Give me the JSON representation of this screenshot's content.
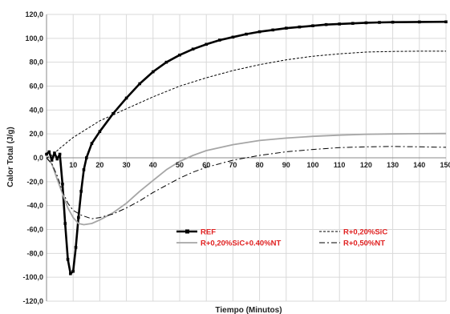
{
  "chart_data": {
    "type": "line",
    "title": "",
    "xlabel": "Tiempo (Minutos)",
    "ylabel": "Calor Total (J/g)",
    "xlim": [
      0,
      150
    ],
    "ylim": [
      -120,
      120
    ],
    "x_ticks": [
      "10",
      "20",
      "30",
      "40",
      "50",
      "60",
      "70",
      "80",
      "90",
      "100",
      "110",
      "120",
      "130",
      "140",
      "150"
    ],
    "y_ticks": [
      "120,0",
      "100,0",
      "80,0",
      "60,0",
      "40,0",
      "20,0",
      "0,0",
      "-20,0",
      "-40,0",
      "-60,0",
      "-80,0",
      "-100,0",
      "-120,0"
    ],
    "grid": true,
    "legend_position": "lower-right",
    "series": [
      {
        "name": "REF",
        "style": "solid-square-markers",
        "color": "#000000",
        "points": [
          [
            0,
            3
          ],
          [
            1,
            5
          ],
          [
            2,
            -2
          ],
          [
            3,
            4
          ],
          [
            4,
            -1
          ],
          [
            5,
            3
          ],
          [
            6,
            -22
          ],
          [
            7,
            -55
          ],
          [
            8,
            -85
          ],
          [
            9,
            -97
          ],
          [
            10,
            -95
          ],
          [
            11,
            -75
          ],
          [
            12,
            -50
          ],
          [
            13,
            -28
          ],
          [
            14,
            -10
          ],
          [
            15,
            0
          ],
          [
            17,
            12
          ],
          [
            20,
            22
          ],
          [
            25,
            37
          ],
          [
            30,
            50
          ],
          [
            35,
            62
          ],
          [
            40,
            72
          ],
          [
            45,
            80
          ],
          [
            50,
            86
          ],
          [
            55,
            91
          ],
          [
            60,
            95
          ],
          [
            65,
            98.5
          ],
          [
            70,
            101
          ],
          [
            75,
            103.5
          ],
          [
            80,
            105.5
          ],
          [
            85,
            107
          ],
          [
            90,
            108.5
          ],
          [
            95,
            109.5
          ],
          [
            100,
            110.5
          ],
          [
            105,
            111.5
          ],
          [
            110,
            112
          ],
          [
            115,
            112.5
          ],
          [
            120,
            113
          ],
          [
            125,
            113.3
          ],
          [
            130,
            113.5
          ],
          [
            140,
            113.7
          ],
          [
            150,
            113.8
          ]
        ]
      },
      {
        "name": "R+0,20%SiC",
        "style": "dashed",
        "color": "#000000",
        "points": [
          [
            0,
            0
          ],
          [
            2,
            2
          ],
          [
            5,
            8
          ],
          [
            10,
            17
          ],
          [
            15,
            24
          ],
          [
            20,
            31
          ],
          [
            30,
            41
          ],
          [
            40,
            51
          ],
          [
            50,
            60
          ],
          [
            60,
            67
          ],
          [
            70,
            73
          ],
          [
            80,
            78
          ],
          [
            90,
            82
          ],
          [
            100,
            85
          ],
          [
            110,
            87
          ],
          [
            120,
            88.5
          ],
          [
            130,
            89
          ],
          [
            140,
            89.2
          ],
          [
            150,
            89.2
          ]
        ]
      },
      {
        "name": "R+0,20%SiC+0.40%NT",
        "style": "solid-gray",
        "color": "#a6a6a6",
        "points": [
          [
            0,
            0
          ],
          [
            2,
            -5
          ],
          [
            4,
            -18
          ],
          [
            6,
            -30
          ],
          [
            8,
            -42
          ],
          [
            10,
            -50
          ],
          [
            12,
            -55
          ],
          [
            14,
            -56
          ],
          [
            17,
            -55
          ],
          [
            20,
            -52
          ],
          [
            25,
            -46
          ],
          [
            30,
            -38
          ],
          [
            35,
            -28
          ],
          [
            40,
            -19
          ],
          [
            45,
            -10
          ],
          [
            50,
            -3
          ],
          [
            55,
            2
          ],
          [
            60,
            6
          ],
          [
            70,
            11
          ],
          [
            80,
            14.5
          ],
          [
            90,
            16.5
          ],
          [
            100,
            18
          ],
          [
            110,
            19
          ],
          [
            120,
            19.7
          ],
          [
            130,
            20
          ],
          [
            140,
            20.2
          ],
          [
            150,
            20.3
          ]
        ]
      },
      {
        "name": "R+0,50%NT",
        "style": "dash-dot",
        "color": "#000000",
        "points": [
          [
            0,
            0
          ],
          [
            2,
            -5
          ],
          [
            4,
            -15
          ],
          [
            6,
            -28
          ],
          [
            8,
            -38
          ],
          [
            10,
            -44
          ],
          [
            13,
            -48
          ],
          [
            17,
            -51
          ],
          [
            20,
            -50
          ],
          [
            25,
            -47
          ],
          [
            30,
            -42
          ],
          [
            35,
            -36
          ],
          [
            40,
            -29
          ],
          [
            45,
            -23
          ],
          [
            50,
            -17
          ],
          [
            55,
            -12
          ],
          [
            60,
            -8
          ],
          [
            70,
            -2
          ],
          [
            80,
            2
          ],
          [
            90,
            5
          ],
          [
            100,
            7
          ],
          [
            110,
            8.5
          ],
          [
            120,
            9.2
          ],
          [
            130,
            9.5
          ],
          [
            140,
            9.2
          ],
          [
            150,
            8.8
          ]
        ]
      }
    ]
  }
}
